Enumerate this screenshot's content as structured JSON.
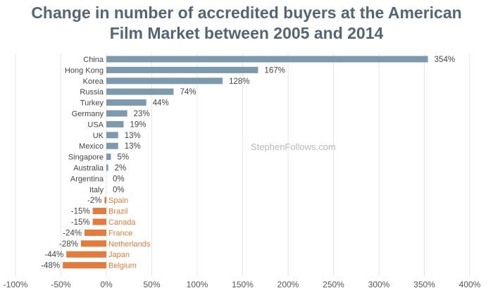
{
  "title_lines": [
    "Change in number of accredited buyers at the American",
    "Film Market between 2005 and 2014"
  ],
  "watermark": "StephenFollows.com",
  "colors": {
    "positive": "#7d99ad",
    "negative": "#e27c3e",
    "title": "#546573",
    "grid": "#e6e6e6",
    "label": "#444444"
  },
  "chart_data": {
    "type": "bar",
    "orientation": "horizontal",
    "title": "Change in number of accredited buyers at the American Film Market between 2005 and 2014",
    "xlabel": "",
    "ylabel": "",
    "xlim": [
      -100,
      400
    ],
    "x_ticks": [
      -100,
      -50,
      0,
      50,
      100,
      150,
      200,
      250,
      300,
      350,
      400
    ],
    "x_tick_labels": [
      "-100%",
      "-50%",
      "0%",
      "50%",
      "100%",
      "150%",
      "200%",
      "250%",
      "300%",
      "350%",
      "400%"
    ],
    "grid": true,
    "categories": [
      "China",
      "Hong Kong",
      "Korea",
      "Russia",
      "Turkey",
      "Germany",
      "USA",
      "UK",
      "Mexico",
      "Singapore",
      "Australia",
      "Argentina",
      "Italy",
      "Spain",
      "Brazil",
      "Canada",
      "France",
      "Netherlands",
      "Japan",
      "Belgium"
    ],
    "values": [
      354,
      167,
      128,
      74,
      44,
      23,
      19,
      13,
      13,
      5,
      2,
      0,
      0,
      -2,
      -15,
      -15,
      -24,
      -28,
      -44,
      -48
    ],
    "value_labels": [
      "354%",
      "167%",
      "128%",
      "74%",
      "44%",
      "23%",
      "19%",
      "13%",
      "13%",
      "5%",
      "2%",
      "0%",
      "0%",
      "-2%",
      "-15%",
      "-15%",
      "-24%",
      "-28%",
      "-44%",
      "-48%"
    ]
  }
}
